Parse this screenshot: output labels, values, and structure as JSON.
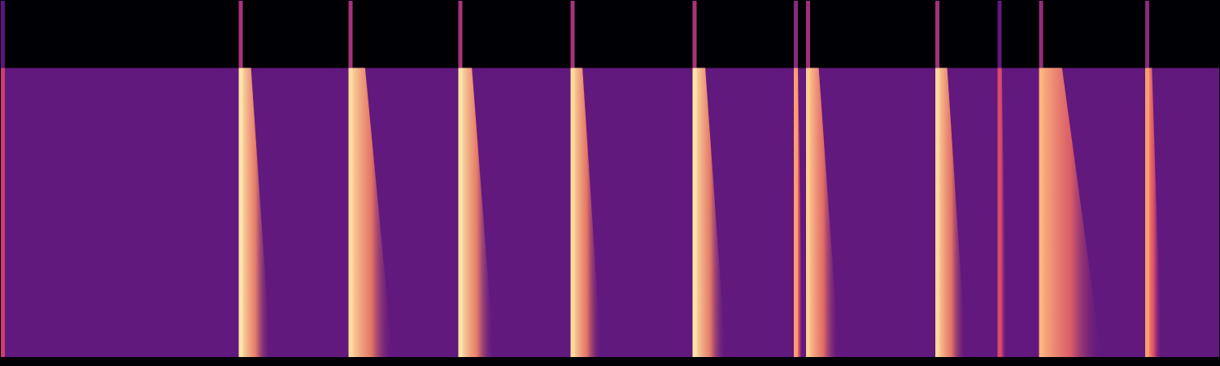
{
  "chart_data": {
    "type": "spectrogram",
    "tick_labels": false,
    "xlim": [
      0,
      100
    ],
    "ylim": [
      0,
      100
    ],
    "color_range": [
      0,
      1
    ],
    "background_level": 0.3,
    "band_top": 81,
    "x": [
      0.2,
      19.7,
      28.7,
      37.7,
      46.9,
      56.9,
      65.2,
      66.2,
      76.8,
      81.9,
      85.3,
      94.0
    ],
    "values": [
      0.55,
      0.95,
      0.93,
      0.95,
      0.93,
      0.95,
      0.8,
      0.9,
      0.92,
      0.6,
      0.85,
      0.8
    ],
    "durations": [
      0.3,
      2.5,
      3.5,
      2.8,
      2.4,
      2.6,
      0.6,
      2.6,
      2.4,
      0.6,
      5.0,
      1.2
    ]
  }
}
